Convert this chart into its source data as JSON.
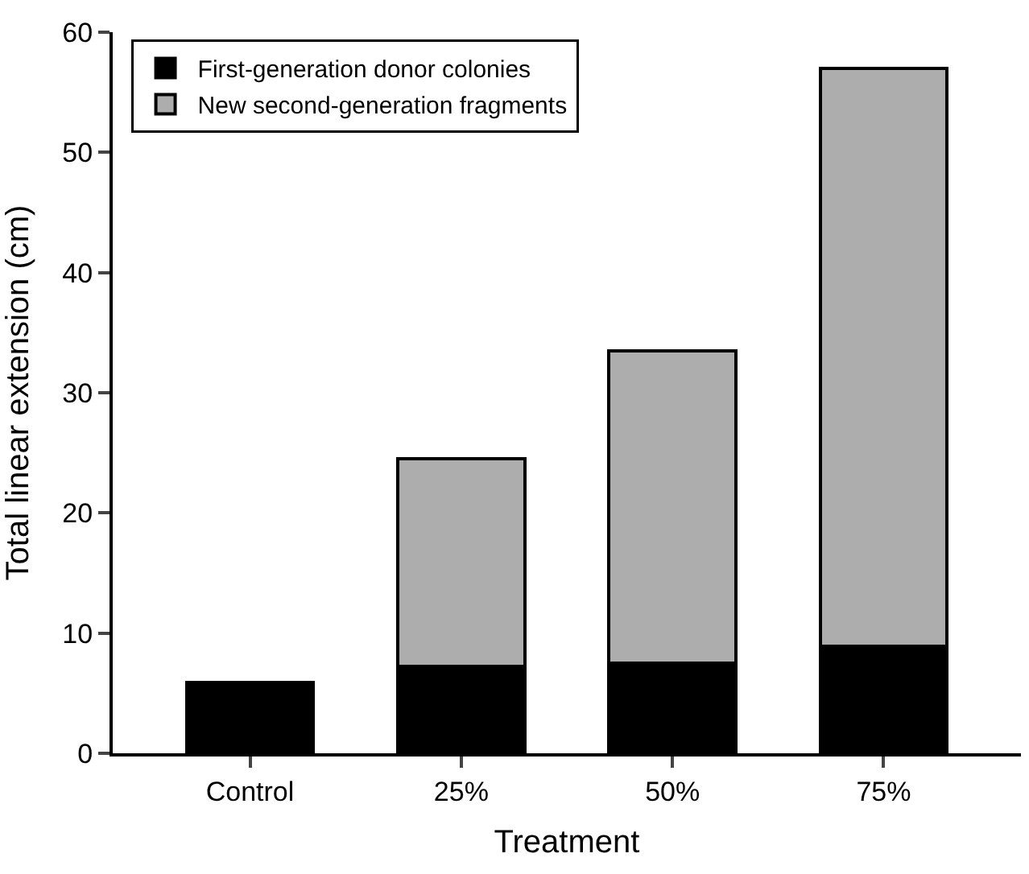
{
  "chart_data": {
    "type": "bar",
    "stacked": true,
    "xlabel": "Treatment",
    "ylabel": "Total linear extension (cm)",
    "categories": [
      "Control",
      "25%",
      "50%",
      "75%"
    ],
    "series": [
      {
        "name": "First-generation donor colonies",
        "color": "#000000",
        "values": [
          5.9,
          7.2,
          7.5,
          8.9
        ]
      },
      {
        "name": "New second-generation fragments",
        "color": "#adadad",
        "values": [
          null,
          17.3,
          26.0,
          48.1
        ]
      }
    ],
    "ylim": [
      0,
      60
    ],
    "yticks": [
      0,
      10,
      20,
      30,
      40,
      50,
      60
    ],
    "legend": "top left"
  }
}
